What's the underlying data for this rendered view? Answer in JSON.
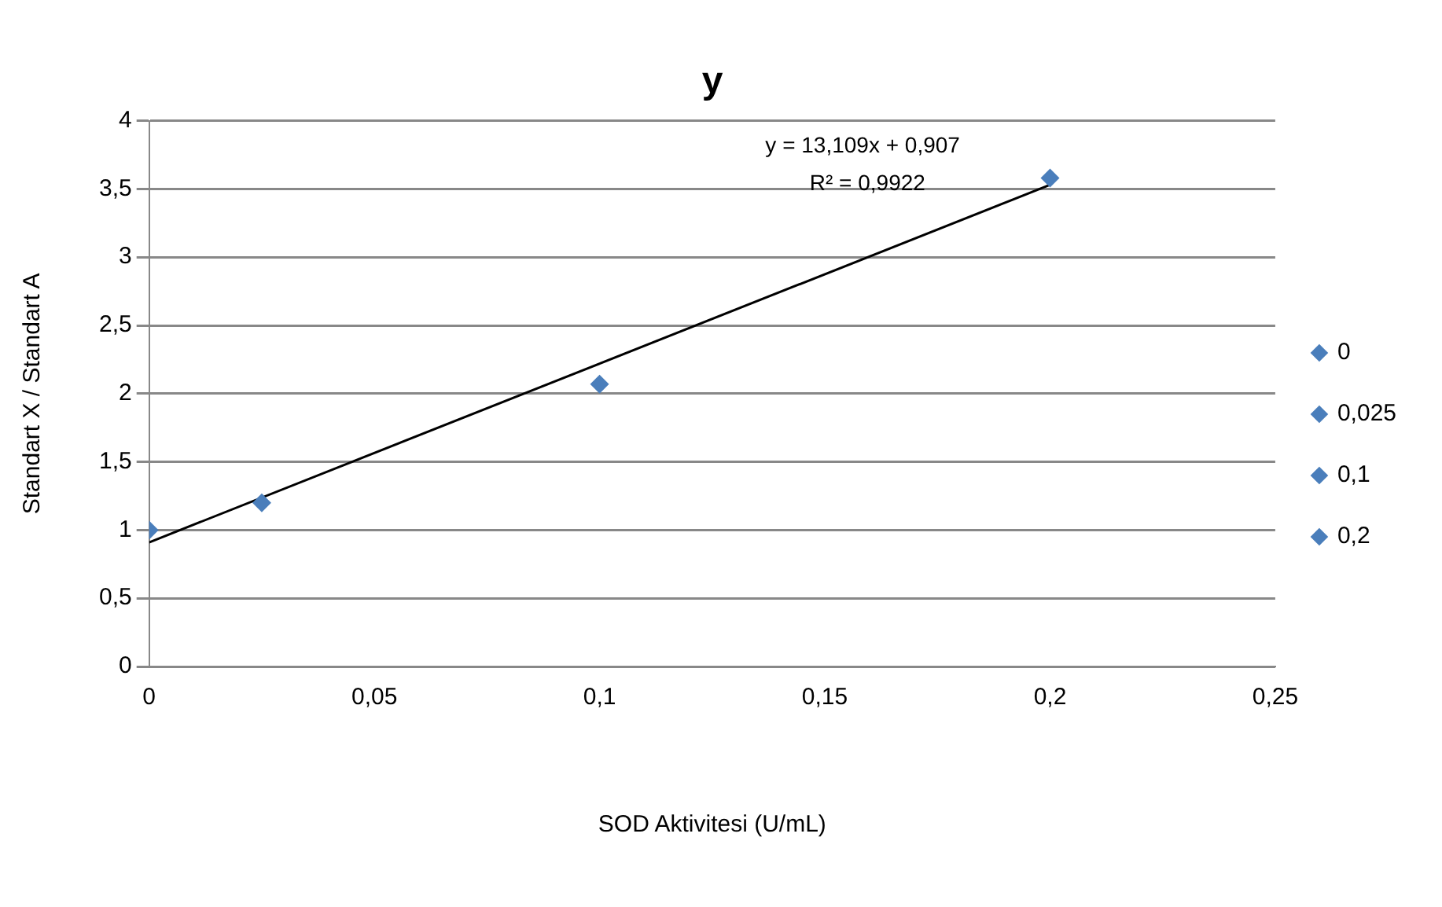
{
  "chart_data": {
    "type": "scatter",
    "title": "y",
    "xlabel": "SOD Aktivitesi (U/mL)",
    "ylabel": "Standart X / Standart A",
    "xlim": [
      0,
      0.25
    ],
    "xticks": [
      0,
      {
        "value": 0.05,
        "label": "0,05"
      },
      {
        "value": 0.1,
        "label": "0,1"
      },
      {
        "value": 0.15,
        "label": "0,15"
      },
      {
        "value": 0.2,
        "label": "0,2"
      },
      {
        "value": 0.25,
        "label": "0,25"
      }
    ],
    "ylim": [
      0,
      4
    ],
    "yticks": [
      0,
      {
        "value": 0.5,
        "label": "0,5"
      },
      1,
      {
        "value": 1.5,
        "label": "1,5"
      },
      2,
      {
        "value": 2.5,
        "label": "2,5"
      },
      3,
      {
        "value": 3.5,
        "label": "3,5"
      },
      4
    ],
    "grid": "y",
    "legend": "right",
    "marker": "diamond",
    "series": [
      {
        "name": "0",
        "color": "#4a7ebb",
        "x": [
          0
        ],
        "values": [
          1.0
        ]
      },
      {
        "name": "0,025",
        "color": "#4a7ebb",
        "x": [
          0.025
        ],
        "values": [
          1.2
        ]
      },
      {
        "name": "0,1",
        "color": "#4a7ebb",
        "x": [
          0.1
        ],
        "values": [
          2.07
        ]
      },
      {
        "name": "0,2",
        "color": "#4a7ebb",
        "x": [
          0.2
        ],
        "values": [
          3.58
        ]
      },
      {
        "type": "line",
        "color": "#000000",
        "marker": "none",
        "line_style": "solid",
        "x": [
          0,
          0.2
        ],
        "values": [
          0.91,
          3.53
        ]
      }
    ],
    "annotations": [
      "y = 13,109x + 0,907",
      "R² = 0,9922"
    ]
  }
}
